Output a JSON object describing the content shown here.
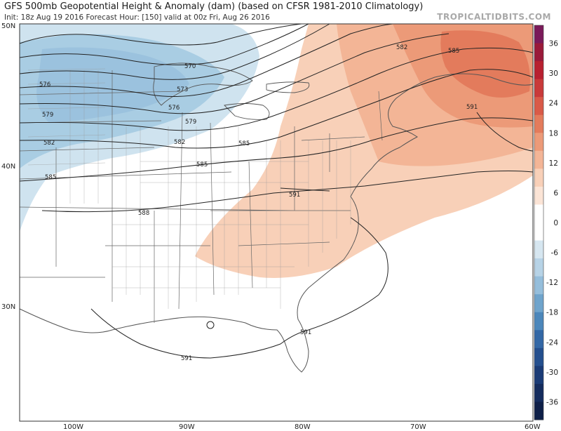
{
  "header": {
    "title": "GFS 500mb Geopotential Height & Anomaly (dam) (based on CFSR 1981-2010 Climatology)",
    "subtitle": "Init: 18z Aug 19 2016   Forecast Hour: [150]   valid at 00z Fri, Aug 26 2016",
    "brand": "TROPICALTIDBITS.COM"
  },
  "axes": {
    "lat_labels": [
      "50N",
      "40N",
      "30N"
    ],
    "lon_labels": [
      "100W",
      "90W",
      "80W",
      "70W",
      "60W"
    ]
  },
  "colorbar": {
    "labels": [
      "36",
      "30",
      "24",
      "18",
      "12",
      "6",
      "0",
      "-6",
      "-12",
      "-18",
      "-24",
      "-30",
      "-36"
    ],
    "colors": [
      "#7a1a5a",
      "#9a1a3a",
      "#b82030",
      "#c93a3a",
      "#d95a48",
      "#e37b5c",
      "#ec9a78",
      "#f3b596",
      "#f8d0b8",
      "#fbe4d6",
      "#ffffff",
      "#ffffff",
      "#d6e6f0",
      "#b7d3e6",
      "#95bedb",
      "#6fa4cc",
      "#4c87bb",
      "#3368a6",
      "#244f8e",
      "#1a3b76",
      "#142c5e",
      "#0e1f48"
    ]
  },
  "contour_labels": [
    "570",
    "573",
    "576",
    "576",
    "579",
    "579",
    "582",
    "582",
    "585",
    "585",
    "585",
    "588",
    "591",
    "591",
    "591",
    "591",
    "582",
    "585"
  ],
  "colors": {
    "cold_anomaly": "#a9cde3",
    "cold_anomaly_light": "#cfe3ef",
    "warm_anomaly": "#f7c9ad",
    "warm_anomaly_mid": "#f0a888",
    "warm_anomaly_strong": "#e68566",
    "contour": "#222222",
    "border": "#555555"
  }
}
